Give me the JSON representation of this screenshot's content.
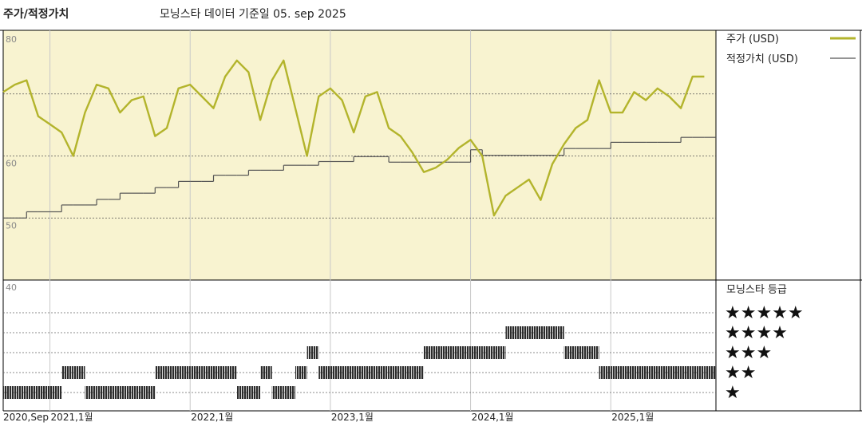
{
  "chart_data": {
    "type": "line",
    "title": "주가/적정가치",
    "subtitle": "모닝스타 데이터 기준일 05. sep 2025",
    "x": [
      "2020-09",
      "2020-10",
      "2020-11",
      "2020-12",
      "2021-01",
      "2021-02",
      "2021-03",
      "2021-04",
      "2021-05",
      "2021-06",
      "2021-07",
      "2021-08",
      "2021-09",
      "2021-10",
      "2021-11",
      "2021-12",
      "2022-01",
      "2022-02",
      "2022-03",
      "2022-04",
      "2022-05",
      "2022-06",
      "2022-07",
      "2022-08",
      "2022-09",
      "2022-10",
      "2022-11",
      "2022-12",
      "2023-01",
      "2023-02",
      "2023-03",
      "2023-04",
      "2023-05",
      "2023-06",
      "2023-07",
      "2023-08",
      "2023-09",
      "2023-10",
      "2023-11",
      "2023-12",
      "2024-01",
      "2024-02",
      "2024-03",
      "2024-04",
      "2024-05",
      "2024-06",
      "2024-07",
      "2024-08",
      "2024-09",
      "2024-10",
      "2024-11",
      "2024-12",
      "2025-01",
      "2025-02",
      "2025-03",
      "2025-04",
      "2025-05",
      "2025-06",
      "2025-07",
      "2025-08",
      "2025-09"
    ],
    "xlim": [
      "2020-09",
      "2025-10"
    ],
    "xticks": [
      {
        "value": "2020-09",
        "label": "2020,Sep"
      },
      {
        "value": "2021-01",
        "label": "2021,1월"
      },
      {
        "value": "2022-01",
        "label": "2022,1월"
      },
      {
        "value": "2023-01",
        "label": "2023,1월"
      },
      {
        "value": "2024-01",
        "label": "2024,1월"
      },
      {
        "value": "2025-01",
        "label": "2025,1월"
      }
    ],
    "ylim": [
      40,
      80
    ],
    "yticks": [
      40,
      50,
      60,
      80
    ],
    "minor_yticks": [
      70
    ],
    "series": [
      {
        "name": "주가 (USD)",
        "color": "#b3b42c",
        "values": [
          70.3,
          71.5,
          72.2,
          66.4,
          65.1,
          63.8,
          60,
          67,
          71.5,
          70.9,
          67,
          69,
          69.6,
          63.2,
          64.5,
          70.9,
          71.5,
          69.6,
          67.7,
          72.8,
          75.4,
          73.5,
          65.8,
          72.2,
          75.4,
          67.7,
          60,
          69.6,
          70.9,
          69,
          63.8,
          69.6,
          70.3,
          64.5,
          63.2,
          60.6,
          57.4,
          58.1,
          59.4,
          61.3,
          62.6,
          60,
          50.4,
          53.6,
          54.9,
          56.2,
          52.9,
          58.7,
          61.9,
          64.5,
          65.8,
          72.2,
          67,
          67,
          70.3,
          69,
          70.9,
          69.6,
          67.7,
          72.8,
          72.8
        ]
      },
      {
        "name": "적정가치 (USD)",
        "color": "#555555",
        "values": [
          50,
          50,
          51,
          51,
          51,
          52.1,
          52.1,
          52.1,
          53,
          53,
          54,
          54,
          54,
          54.9,
          54.9,
          55.9,
          55.9,
          55.9,
          56.9,
          56.9,
          56.9,
          57.7,
          57.7,
          57.7,
          58.5,
          58.5,
          58.5,
          59.1,
          59.1,
          59.1,
          59.9,
          59.9,
          59.9,
          59,
          59,
          59,
          59,
          59,
          59,
          59,
          61,
          60.1,
          60.1,
          60.1,
          60.1,
          60.1,
          60.1,
          60.1,
          61.2,
          61.2,
          61.2,
          61.2,
          62.2,
          62.2,
          62.2,
          62.2,
          62.2,
          62.2,
          63,
          63,
          63
        ]
      }
    ],
    "rating": {
      "name": "모닝스타 등급",
      "color": "#2b2b2b",
      "labels": [
        "★★★★★",
        "★★★★",
        "★★★",
        "★★",
        "★"
      ],
      "values": [
        1,
        1,
        1,
        1,
        1,
        2,
        2,
        1,
        1,
        1,
        1,
        1,
        1,
        2,
        2,
        2,
        2,
        2,
        2,
        2,
        1,
        1,
        2,
        1,
        1,
        2,
        3,
        2,
        2,
        2,
        2,
        2,
        2,
        2,
        2,
        2,
        3,
        3,
        3,
        3,
        3,
        3,
        3,
        4,
        4,
        4,
        4,
        4,
        3,
        3,
        3,
        2,
        2,
        2,
        2,
        2,
        2,
        2,
        2,
        2,
        2
      ]
    },
    "background": "#f8f3d0",
    "grid": true
  }
}
